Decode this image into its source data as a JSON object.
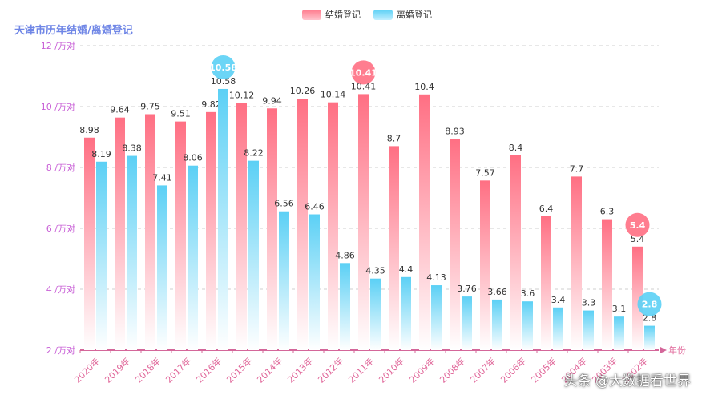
{
  "title": "天津市历年结婚/离婚登记",
  "watermark": "头条 @大数据看世界",
  "chart_data": {
    "type": "bar",
    "title": "天津市历年结婚/离婚登记",
    "xlabel": "年份",
    "ylabel": "",
    "y_unit_suffix": " /万对",
    "ylim": [
      2,
      12
    ],
    "yticks": [
      2,
      4,
      6,
      8,
      10,
      12
    ],
    "grid": "horizontal dashed",
    "legend_position": "top-center",
    "categories": [
      "2020年",
      "2019年",
      "2018年",
      "2017年",
      "2016年",
      "2015年",
      "2014年",
      "2013年",
      "2012年",
      "2011年",
      "2010年",
      "2009年",
      "2008年",
      "2007年",
      "2006年",
      "2005年",
      "2004年",
      "2003年",
      "2002年"
    ],
    "series": [
      {
        "name": "结婚登记",
        "color": "#ff6f83",
        "values": [
          8.98,
          9.64,
          9.75,
          9.51,
          9.82,
          10.12,
          9.94,
          10.26,
          10.14,
          10.41,
          8.7,
          10.4,
          8.93,
          7.57,
          8.4,
          6.4,
          7.7,
          6.3,
          5.4
        ],
        "markers": [
          {
            "category": "2011年",
            "label": "10.41"
          },
          {
            "category": "2002年",
            "label": "5.4"
          }
        ]
      },
      {
        "name": "离婚登记",
        "color": "#5bd0f5",
        "values": [
          8.19,
          8.38,
          7.41,
          8.06,
          10.58,
          8.22,
          6.56,
          6.46,
          4.86,
          4.35,
          4.4,
          4.13,
          3.76,
          3.66,
          3.6,
          3.4,
          3.3,
          3.1,
          2.8
        ],
        "markers": [
          {
            "category": "2016年",
            "label": "10.58"
          },
          {
            "category": "2002年",
            "label": "2.8"
          }
        ]
      }
    ]
  }
}
